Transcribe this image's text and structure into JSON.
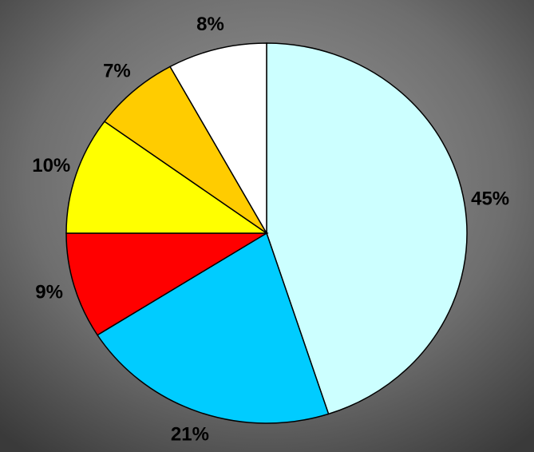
{
  "chart_data": {
    "type": "pie",
    "categories": [
      null,
      null,
      null,
      null,
      null,
      null
    ],
    "values": [
      45,
      21,
      9,
      10,
      7,
      8
    ],
    "value_labels": [
      "45%",
      "21%",
      "9%",
      "10%",
      "7%",
      "8%"
    ],
    "colors": [
      "#ccffff",
      "#00ccff",
      "#ff0000",
      "#ffff00",
      "#ffcc00",
      "#ffffff"
    ]
  }
}
